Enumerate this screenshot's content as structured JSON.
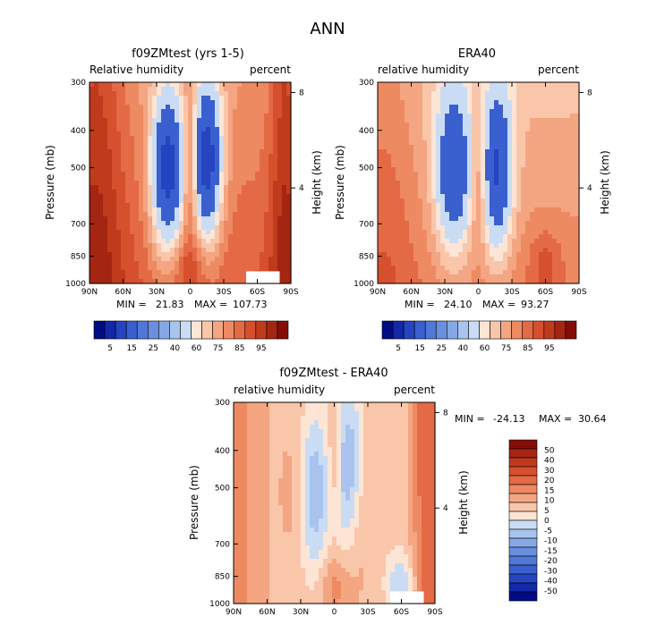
{
  "figure_title": "ANN",
  "colors": {
    "pos": [
      "#fde5d6",
      "#f9c6aa",
      "#f4a582",
      "#ed8a62",
      "#e46a45",
      "#d6502d",
      "#c03a1c",
      "#a42612",
      "#850d07"
    ],
    "neg": [
      "#c9dcf4",
      "#a8c4ee",
      "#86a9e6",
      "#6a8fde",
      "#5178d6",
      "#3a5fce",
      "#2444c0",
      "#1228a8",
      "#000b85"
    ]
  },
  "chart_data": [
    {
      "type": "heatmap",
      "title": "f09ZMtest (yrs 1-5)",
      "left_label": "Relative humidity",
      "right_label": "percent",
      "xlabel": "",
      "ylabel": "Pressure (mb)",
      "y2label": "Height (km)",
      "x_ticks": [
        "90N",
        "60N",
        "30N",
        "0",
        "30S",
        "60S",
        "90S"
      ],
      "y_ticks": [
        300,
        400,
        500,
        700,
        850,
        1000
      ],
      "y2_ticks": [
        8,
        4
      ],
      "stats": {
        "min_label": "MIN =",
        "min": "21.83",
        "max_label": "MAX =",
        "max": "107.73"
      },
      "colorbar_levels": [
        "5",
        "15",
        "25",
        "40",
        "60",
        "75",
        "85",
        "95"
      ],
      "field": "rh",
      "missing_box_lat": [
        -50,
        -80
      ]
    },
    {
      "type": "heatmap",
      "title": "ERA40",
      "left_label": "relative humidity",
      "right_label": "percent",
      "xlabel": "",
      "ylabel": "Pressure (mb)",
      "y2label": "Height (km)",
      "x_ticks": [
        "90N",
        "60N",
        "30N",
        "0",
        "30S",
        "60S",
        "90S"
      ],
      "y_ticks": [
        300,
        400,
        500,
        700,
        850,
        1000
      ],
      "y2_ticks": [
        8,
        4
      ],
      "stats": {
        "min_label": "MIN =",
        "min": "24.10",
        "max_label": "MAX =",
        "max": "93.27"
      },
      "colorbar_levels": [
        "5",
        "15",
        "25",
        "40",
        "60",
        "75",
        "85",
        "95"
      ],
      "field": "rh_obs"
    },
    {
      "type": "heatmap",
      "title": "f09ZMtest - ERA40",
      "left_label": "relative humidity",
      "right_label": "percent",
      "xlabel": "",
      "ylabel": "Pressure (mb)",
      "y2label": "Height (km)",
      "x_ticks": [
        "90N",
        "60N",
        "30N",
        "0",
        "30S",
        "60S",
        "90S"
      ],
      "y_ticks": [
        300,
        400,
        500,
        700,
        850,
        1000
      ],
      "y2_ticks": [
        8,
        4
      ],
      "stats": {
        "min_label": "MIN =",
        "min": "-24.13",
        "max_label": "MAX =",
        "max": "30.64"
      },
      "colorbar_levels": [
        "50",
        "40",
        "30",
        "20",
        "15",
        "10",
        "5",
        "0",
        "-5",
        "-10",
        "-15",
        "-20",
        "-30",
        "-40",
        "-50"
      ],
      "field": "diff",
      "missing_box_lat": [
        -50,
        -80
      ]
    }
  ]
}
